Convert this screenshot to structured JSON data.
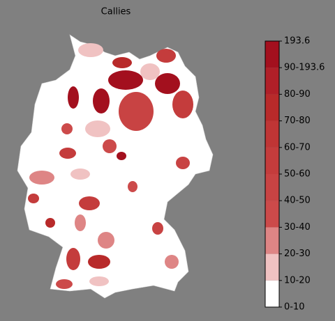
{
  "title": "Callies",
  "colorbar": {
    "labels": [
      "0-10",
      "10-20",
      "20-30",
      "30-40",
      "40-50",
      "50-60",
      "60-70",
      "70-80",
      "80-90",
      "90-193.6",
      "193.6"
    ],
    "colors": [
      "#ffffff",
      "#f0c2c2",
      "#de8585",
      "#cc4a4a",
      "#c84343",
      "#c43c3c",
      "#bf3535",
      "#b82a2a",
      "#b01f28",
      "#a3101e"
    ]
  }
}
